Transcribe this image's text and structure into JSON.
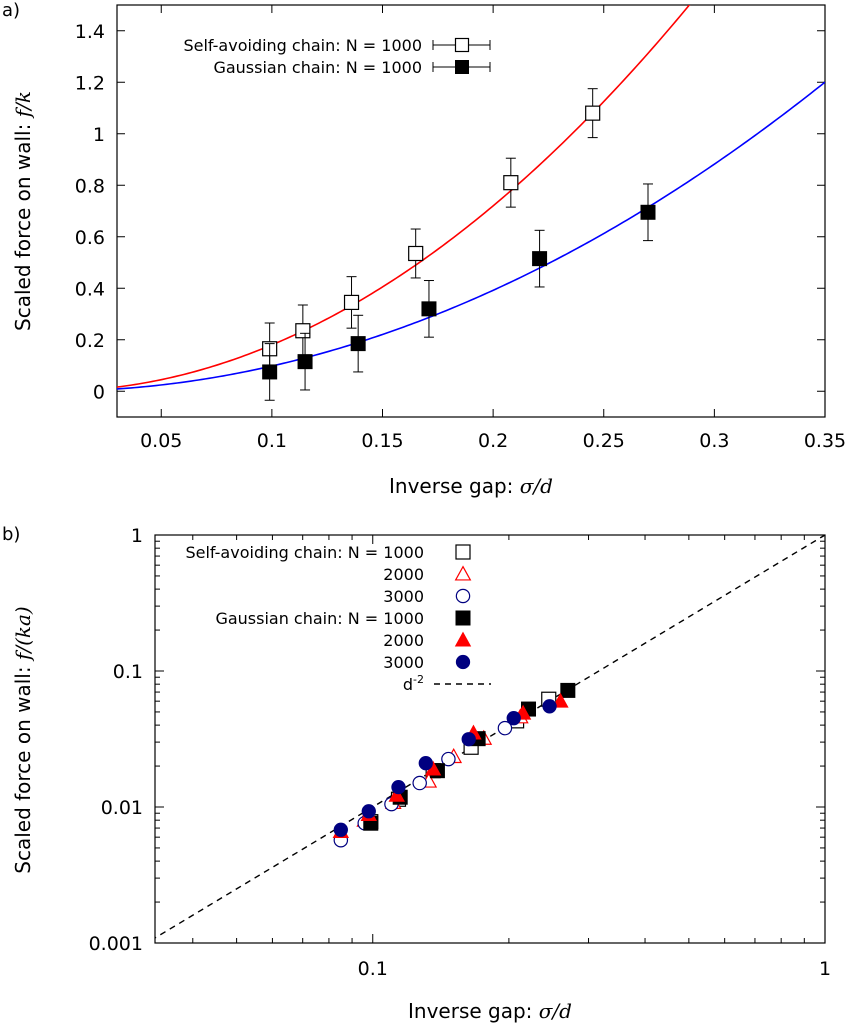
{
  "chart_data": [
    {
      "type": "scatter",
      "panel_label": "a)",
      "xlabel_prefix": "Inverse gap: ",
      "xlabel_math": "σ/d",
      "ylabel_prefix": "Scaled force on wall: ",
      "ylabel_math": "f/k",
      "xlim": [
        0.03,
        0.35
      ],
      "ylim": [
        -0.1,
        1.5
      ],
      "x_ticks": [
        0.05,
        0.1,
        0.15,
        0.2,
        0.25,
        0.3,
        0.35
      ],
      "x_tick_labels": [
        "0.05",
        "0.1",
        "0.15",
        "0.2",
        "0.25",
        "0.3",
        "0.35"
      ],
      "y_ticks": [
        0,
        0.2,
        0.4,
        0.6,
        0.8,
        1,
        1.2,
        1.4
      ],
      "y_tick_labels": [
        "0",
        "0.2",
        "0.4",
        "0.6",
        "0.8",
        "1",
        "1.2",
        "1.4"
      ],
      "legend_position": "top-left",
      "series": [
        {
          "name": "Self-avoiding chain: N = 1000",
          "marker": "open-square",
          "color": "#000000",
          "fit_color": "#ff0000",
          "fit": {
            "form": "a*x^2",
            "a": 18.0
          },
          "x": [
            0.099,
            0.114,
            0.136,
            0.165,
            0.208,
            0.245
          ],
          "y": [
            0.165,
            0.235,
            0.345,
            0.535,
            0.81,
            1.08
          ],
          "yerr": [
            0.1,
            0.1,
            0.1,
            0.095,
            0.095,
            0.095
          ]
        },
        {
          "name": "Gaussian chain: N = 1000",
          "marker": "filled-square",
          "color": "#000000",
          "fit_color": "#0000ff",
          "fit": {
            "form": "a*x^2",
            "a": 9.8
          },
          "x": [
            0.099,
            0.115,
            0.139,
            0.171,
            0.221,
            0.27
          ],
          "y": [
            0.075,
            0.115,
            0.185,
            0.32,
            0.515,
            0.695
          ],
          "yerr": [
            0.11,
            0.11,
            0.11,
            0.11,
            0.11,
            0.11
          ]
        }
      ]
    },
    {
      "type": "scatter",
      "panel_label": "b)",
      "xscale": "log",
      "yscale": "log",
      "xlabel_prefix": "Inverse gap: ",
      "xlabel_math": "σ/d",
      "ylabel_prefix": "Scaled force on wall: ",
      "ylabel_math": "f/(ka)",
      "xlim": [
        0.033,
        1
      ],
      "ylim": [
        0.001,
        1
      ],
      "x_ticks": [
        0.1,
        1
      ],
      "x_tick_labels": [
        "0.1",
        "1"
      ],
      "y_ticks": [
        0.001,
        0.01,
        0.1,
        1
      ],
      "y_tick_labels": [
        "0.001",
        "0.01",
        "0.1",
        "1"
      ],
      "legend_position": "top-left",
      "legend_group_labels": [
        "Self-avoiding chain: N = 1000",
        "Gaussian chain: N = 1000"
      ],
      "series": [
        {
          "name": "Self-avoiding chain: N = 1000",
          "legend_label": "Self-avoiding chain: N = 1000",
          "marker": "open-square",
          "color": "#000000",
          "x": [
            0.099,
            0.114,
            0.136,
            0.165,
            0.208,
            0.245
          ],
          "y": [
            0.0078,
            0.0114,
            0.0185,
            0.0275,
            0.043,
            0.062
          ]
        },
        {
          "name": "Self-avoiding chain: N = 2000",
          "legend_label": "2000",
          "marker": "open-triangle",
          "color": "#ff0000",
          "x": [
            0.096,
            0.111,
            0.133,
            0.151,
            0.176,
            0.212
          ],
          "y": [
            0.008,
            0.0108,
            0.0155,
            0.0235,
            0.032,
            0.046
          ]
        },
        {
          "name": "Self-avoiding chain: N = 3000",
          "legend_label": "3000",
          "marker": "open-circle",
          "color": "#000080",
          "x": [
            0.085,
            0.096,
            0.11,
            0.127,
            0.147,
            0.196
          ],
          "y": [
            0.0057,
            0.0076,
            0.0105,
            0.015,
            0.0225,
            0.038
          ]
        },
        {
          "name": "Gaussian chain: N = 1000",
          "legend_label": "Gaussian chain: N = 1000",
          "marker": "filled-square",
          "color": "#000000",
          "x": [
            0.099,
            0.115,
            0.139,
            0.171,
            0.221,
            0.27
          ],
          "y": [
            0.0076,
            0.0118,
            0.0185,
            0.0318,
            0.0525,
            0.072
          ]
        },
        {
          "name": "Gaussian chain: N = 2000",
          "legend_label": "2000",
          "marker": "filled-triangle",
          "color": "#ff0000",
          "x": [
            0.085,
            0.098,
            0.113,
            0.136,
            0.167,
            0.215,
            0.26
          ],
          "y": [
            0.0066,
            0.0088,
            0.0122,
            0.019,
            0.035,
            0.049,
            0.06
          ]
        },
        {
          "name": "Gaussian chain: N = 3000",
          "legend_label": "3000",
          "marker": "filled-circle",
          "color": "#000080",
          "x": [
            0.085,
            0.098,
            0.114,
            0.131,
            0.163,
            0.205,
            0.246
          ],
          "y": [
            0.0068,
            0.0093,
            0.014,
            0.021,
            0.0315,
            0.045,
            0.055
          ]
        }
      ],
      "reference_line": {
        "name": "d-2",
        "label_base": "d",
        "label_exp": "-2",
        "style": "dashed",
        "color": "#000000",
        "slope": 2,
        "passes_through": [
          1,
          1
        ]
      }
    }
  ]
}
